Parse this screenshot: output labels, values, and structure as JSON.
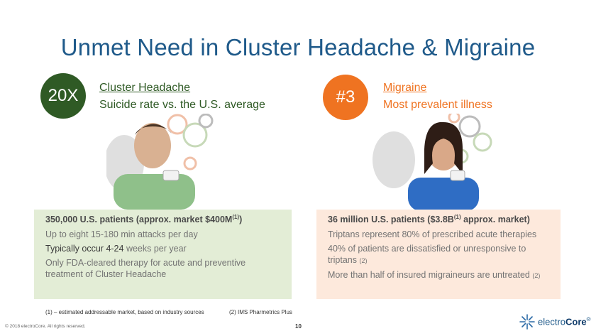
{
  "title": "Unmet Need in Cluster Headache & Migraine",
  "left": {
    "badge": "20X",
    "heading": "Cluster Headache",
    "subheading": "Suicide rate vs. the U.S. average",
    "lead_text": "350,000 U.S. patients (approx. market $400M",
    "lead_sup": "(1)",
    "lead_close": ")",
    "bullets": [
      "Up to eight 15-180 min attacks per day",
      "Typically occur 4-24",
      " weeks per year",
      "Only FDA-cleared therapy for acute and preventive treatment of Cluster Headache"
    ]
  },
  "right": {
    "badge": "#3",
    "heading": "Migraine",
    "subheading": "Most prevalent illness",
    "lead_text": "36 million U.S. patients ($3.8B",
    "lead_sup": "(1)",
    "lead_close": " approx. market)",
    "bullets": [
      "Triptans represent 80% of prescribed acute therapies",
      "40% of patients are dissatisfied or unresponsive to triptans",
      "(2)",
      "More than half of insured migraineurs are untreated",
      "(2)"
    ]
  },
  "footnotes": {
    "one": "(1) – estimated addressable market, based on industry sources",
    "two": "(2) IMS Pharmetrics Plus"
  },
  "footer": {
    "copyright": "© 2018 electroCore. All rights reserved.",
    "page_number": "10",
    "brand_light": "electro",
    "brand_bold": "Core",
    "brand_mark": "®"
  },
  "colors": {
    "title_blue": "#1f5a8a",
    "cluster_green": "#2f5a25",
    "migraine_orange": "#ef7321",
    "left_panel": "#e3edd6",
    "right_panel": "#fde9dc"
  }
}
